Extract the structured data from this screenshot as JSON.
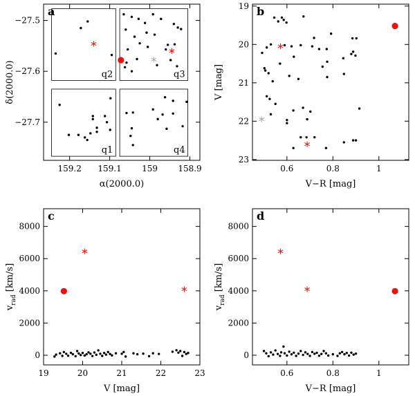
{
  "colors": {
    "stars": "#000000",
    "red": "#ee1111",
    "gray": "#aaaaaa"
  },
  "chart_data": [
    {
      "type": "scatter",
      "panel_label": "a",
      "xlabel": "α(2000.0)",
      "ylabel": "δ(2000.0)",
      "xlim": [
        159.265,
        158.875
      ],
      "ylim": [
        -27.775,
        -27.468
      ],
      "xticks": [
        159.2,
        159.1,
        159.0,
        158.9
      ],
      "xtick_labels": [
        "159.2",
        "159.1",
        "159",
        "158.9"
      ],
      "yticks": [
        -27.5,
        -27.6,
        -27.7
      ],
      "ytick_labels": [
        "−27.5",
        "−27.6",
        "−27.7"
      ],
      "quadrants": [
        {
          "label": "q2",
          "x": [
            159.245,
            159.085
          ],
          "y": [
            -27.477,
            -27.618
          ]
        },
        {
          "label": "q3",
          "x": [
            159.075,
            158.905
          ],
          "y": [
            -27.477,
            -27.618
          ]
        },
        {
          "label": "q1",
          "x": [
            159.245,
            159.085
          ],
          "y": [
            -27.635,
            -27.767
          ]
        },
        {
          "label": "q4",
          "x": [
            159.075,
            158.905
          ],
          "y": [
            -27.635,
            -27.767
          ]
        }
      ],
      "series": [
        {
          "marker": "dot",
          "color": "black",
          "points": [
            [
              159.235,
              -27.565
            ],
            [
              159.172,
              -27.515
            ],
            [
              159.155,
              -27.502
            ],
            [
              159.095,
              -27.568
            ],
            [
              159.065,
              -27.488
            ],
            [
              159.045,
              -27.493
            ],
            [
              159.028,
              -27.497
            ],
            [
              159.012,
              -27.505
            ],
            [
              158.992,
              -27.488
            ],
            [
              158.972,
              -27.497
            ],
            [
              158.94,
              -27.507
            ],
            [
              158.922,
              -27.517
            ],
            [
              159.06,
              -27.518
            ],
            [
              159.038,
              -27.532
            ],
            [
              159.008,
              -27.524
            ],
            [
              158.988,
              -27.528
            ],
            [
              158.93,
              -27.514
            ],
            [
              159.025,
              -27.545
            ],
            [
              159.005,
              -27.552
            ],
            [
              158.955,
              -27.548
            ],
            [
              158.938,
              -27.547
            ],
            [
              159.055,
              -27.557
            ],
            [
              159.032,
              -27.576
            ],
            [
              158.96,
              -27.557
            ],
            [
              159.058,
              -27.583
            ],
            [
              158.982,
              -27.588
            ],
            [
              158.948,
              -27.578
            ],
            [
              158.932,
              -27.59
            ],
            [
              159.062,
              -27.592
            ],
            [
              159.045,
              -27.6
            ],
            [
              159.225,
              -27.666
            ],
            [
              159.098,
              -27.653
            ],
            [
              159.142,
              -27.688
            ],
            [
              159.142,
              -27.694
            ],
            [
              159.112,
              -27.688
            ],
            [
              159.132,
              -27.711
            ],
            [
              159.107,
              -27.7
            ],
            [
              159.099,
              -27.715
            ],
            [
              159.132,
              -27.719
            ],
            [
              159.202,
              -27.725
            ],
            [
              159.178,
              -27.725
            ],
            [
              159.148,
              -27.722
            ],
            [
              159.162,
              -27.73
            ],
            [
              159.156,
              -27.735
            ],
            [
              158.962,
              -27.651
            ],
            [
              158.942,
              -27.658
            ],
            [
              158.908,
              -27.66
            ],
            [
              158.992,
              -27.675
            ],
            [
              159.042,
              -27.681
            ],
            [
              159.058,
              -27.682
            ],
            [
              158.968,
              -27.685
            ],
            [
              158.942,
              -27.683
            ],
            [
              158.98,
              -27.694
            ],
            [
              159.045,
              -27.712
            ],
            [
              158.958,
              -27.713
            ],
            [
              158.918,
              -27.708
            ],
            [
              159.048,
              -27.727
            ],
            [
              159.042,
              -27.745
            ]
          ]
        },
        {
          "marker": "big-dot",
          "color": "red",
          "points": [
            [
              159.072,
              -27.578
            ]
          ]
        },
        {
          "marker": "star",
          "color": "red",
          "points": [
            [
              159.14,
              -27.546
            ],
            [
              158.945,
              -27.56
            ]
          ]
        },
        {
          "marker": "star",
          "color": "gray",
          "points": [
            [
              158.99,
              -27.577
            ]
          ]
        }
      ]
    },
    {
      "type": "scatter",
      "panel_label": "b",
      "xlabel": "V−R [mag]",
      "ylabel": "V [mag]",
      "xlim": [
        0.45,
        1.13
      ],
      "ylim": [
        23.02,
        18.95
      ],
      "xticks": [
        0.6,
        0.8,
        1.0
      ],
      "xtick_labels": [
        "0.6",
        "0.8",
        "1"
      ],
      "yticks": [
        19,
        20,
        21,
        22,
        23
      ],
      "ytick_labels": [
        "19",
        "20",
        "21",
        "22",
        "23"
      ],
      "series": [
        {
          "marker": "dot",
          "color": "black",
          "points": [
            [
              0.545,
              19.3
            ],
            [
              0.578,
              19.3
            ],
            [
              0.586,
              19.36
            ],
            [
              0.598,
              19.43
            ],
            [
              0.562,
              19.4
            ],
            [
              0.672,
              19.27
            ],
            [
              0.718,
              19.83
            ],
            [
              0.792,
              19.72
            ],
            [
              0.885,
              19.84
            ],
            [
              0.902,
              19.84
            ],
            [
              0.492,
              20.22
            ],
            [
              0.512,
              20.08
            ],
            [
              0.53,
              20.0
            ],
            [
              0.59,
              20.02
            ],
            [
              0.62,
              20.05
            ],
            [
              0.66,
              20.02
            ],
            [
              0.71,
              20.05
            ],
            [
              0.74,
              20.12
            ],
            [
              0.773,
              20.12
            ],
            [
              0.888,
              20.19
            ],
            [
              0.88,
              20.25
            ],
            [
              0.898,
              20.29
            ],
            [
              0.502,
              20.62
            ],
            [
              0.506,
              20.68
            ],
            [
              0.52,
              20.75
            ],
            [
              0.57,
              20.5
            ],
            [
              0.63,
              20.32
            ],
            [
              0.755,
              20.58
            ],
            [
              0.775,
              20.45
            ],
            [
              0.845,
              20.36
            ],
            [
              0.538,
              20.96
            ],
            [
              0.61,
              20.82
            ],
            [
              0.65,
              20.9
            ],
            [
              0.775,
              20.85
            ],
            [
              0.848,
              20.77
            ],
            [
              0.512,
              21.35
            ],
            [
              0.525,
              21.42
            ],
            [
              0.55,
              21.55
            ],
            [
              0.53,
              21.82
            ],
            [
              0.6,
              21.97
            ],
            [
              0.6,
              22.05
            ],
            [
              0.628,
              21.72
            ],
            [
              0.67,
              21.65
            ],
            [
              0.688,
              21.95
            ],
            [
              0.702,
              21.75
            ],
            [
              0.915,
              21.67
            ],
            [
              0.66,
              22.42
            ],
            [
              0.685,
              22.42
            ],
            [
              0.628,
              22.7
            ],
            [
              0.72,
              22.42
            ],
            [
              0.77,
              22.7
            ],
            [
              0.848,
              22.55
            ],
            [
              0.888,
              22.5
            ],
            [
              0.9,
              22.5
            ]
          ]
        },
        {
          "marker": "big-dot",
          "color": "red",
          "points": [
            [
              1.07,
              19.52
            ]
          ]
        },
        {
          "marker": "star",
          "color": "red",
          "points": [
            [
              0.572,
              20.05
            ],
            [
              0.688,
              22.6
            ]
          ]
        },
        {
          "marker": "star",
          "color": "gray",
          "points": [
            [
              0.49,
              21.95
            ]
          ]
        }
      ]
    },
    {
      "type": "scatter",
      "panel_label": "c",
      "xlabel": "V [mag]",
      "ylabel": "v_rad [km/s]",
      "xlim": [
        19.0,
        23.0
      ],
      "ylim": [
        -600,
        9100
      ],
      "xticks": [
        19,
        20,
        21,
        22,
        23
      ],
      "xtick_labels": [
        "19",
        "20",
        "21",
        "22",
        "23"
      ],
      "yticks": [
        0,
        2000,
        4000,
        6000,
        8000
      ],
      "ytick_labels": [
        "0",
        "2000",
        "4000",
        "6000",
        "8000"
      ],
      "series": [
        {
          "marker": "dot",
          "color": "black",
          "points": [
            [
              19.28,
              -80
            ],
            [
              19.32,
              40
            ],
            [
              19.42,
              120
            ],
            [
              19.48,
              -40
            ],
            [
              19.52,
              200
            ],
            [
              19.58,
              90
            ],
            [
              19.63,
              -30
            ],
            [
              19.7,
              150
            ],
            [
              19.75,
              60
            ],
            [
              19.82,
              -60
            ],
            [
              19.86,
              260
            ],
            [
              19.9,
              110
            ],
            [
              19.95,
              10
            ],
            [
              20.0,
              140
            ],
            [
              20.05,
              -20
            ],
            [
              20.1,
              60
            ],
            [
              20.15,
              180
            ],
            [
              20.2,
              90
            ],
            [
              20.25,
              -50
            ],
            [
              20.3,
              170
            ],
            [
              20.35,
              30
            ],
            [
              20.4,
              300
            ],
            [
              20.45,
              90
            ],
            [
              20.5,
              -40
            ],
            [
              20.55,
              140
            ],
            [
              20.6,
              40
            ],
            [
              20.65,
              200
            ],
            [
              20.7,
              80
            ],
            [
              20.75,
              -10
            ],
            [
              20.85,
              120
            ],
            [
              21.0,
              90
            ],
            [
              21.05,
              200
            ],
            [
              21.1,
              -80
            ],
            [
              21.3,
              120
            ],
            [
              21.4,
              60
            ],
            [
              21.55,
              100
            ],
            [
              21.7,
              -60
            ],
            [
              21.8,
              120
            ],
            [
              21.95,
              80
            ],
            [
              22.3,
              220
            ],
            [
              22.4,
              310
            ],
            [
              22.45,
              160
            ],
            [
              22.5,
              260
            ],
            [
              22.55,
              -40
            ],
            [
              22.6,
              200
            ],
            [
              22.65,
              80
            ],
            [
              22.7,
              140
            ]
          ]
        },
        {
          "marker": "big-dot",
          "color": "red",
          "points": [
            [
              19.52,
              3980
            ]
          ]
        },
        {
          "marker": "star",
          "color": "red",
          "points": [
            [
              20.05,
              6450
            ],
            [
              22.6,
              4100
            ]
          ]
        }
      ]
    },
    {
      "type": "scatter",
      "panel_label": "d",
      "xlabel": "V−R [mag]",
      "ylabel": "v_rad [km/s]",
      "xlim": [
        0.45,
        1.13
      ],
      "ylim": [
        -600,
        9100
      ],
      "xticks": [
        0.6,
        0.8,
        1.0
      ],
      "xtick_labels": [
        "0.6",
        "0.8",
        "1"
      ],
      "yticks": [
        0,
        2000,
        4000,
        6000,
        8000
      ],
      "ytick_labels": [
        "0",
        "2000",
        "4000",
        "6000",
        "8000"
      ],
      "series": [
        {
          "marker": "dot",
          "color": "black",
          "points": [
            [
              0.5,
              260
            ],
            [
              0.51,
              120
            ],
            [
              0.52,
              -60
            ],
            [
              0.53,
              180
            ],
            [
              0.54,
              40
            ],
            [
              0.55,
              300
            ],
            [
              0.56,
              80
            ],
            [
              0.57,
              -40
            ],
            [
              0.575,
              180
            ],
            [
              0.585,
              540
            ],
            [
              0.59,
              120
            ],
            [
              0.6,
              -20
            ],
            [
              0.61,
              220
            ],
            [
              0.62,
              60
            ],
            [
              0.63,
              160
            ],
            [
              0.64,
              -40
            ],
            [
              0.65,
              100
            ],
            [
              0.66,
              260
            ],
            [
              0.67,
              20
            ],
            [
              0.68,
              180
            ],
            [
              0.69,
              80
            ],
            [
              0.7,
              -40
            ],
            [
              0.71,
              200
            ],
            [
              0.72,
              90
            ],
            [
              0.73,
              150
            ],
            [
              0.74,
              -30
            ],
            [
              0.75,
              80
            ],
            [
              0.76,
              260
            ],
            [
              0.77,
              120
            ],
            [
              0.78,
              -20
            ],
            [
              0.8,
              60
            ],
            [
              0.82,
              -40
            ],
            [
              0.83,
              120
            ],
            [
              0.84,
              200
            ],
            [
              0.85,
              60
            ],
            [
              0.86,
              140
            ],
            [
              0.87,
              -20
            ],
            [
              0.88,
              160
            ],
            [
              0.89,
              40
            ],
            [
              0.9,
              100
            ]
          ]
        },
        {
          "marker": "big-dot",
          "color": "red",
          "points": [
            [
              1.07,
              3980
            ]
          ]
        },
        {
          "marker": "star",
          "color": "red",
          "points": [
            [
              0.572,
              6450
            ],
            [
              0.688,
              4100
            ]
          ]
        }
      ]
    }
  ]
}
